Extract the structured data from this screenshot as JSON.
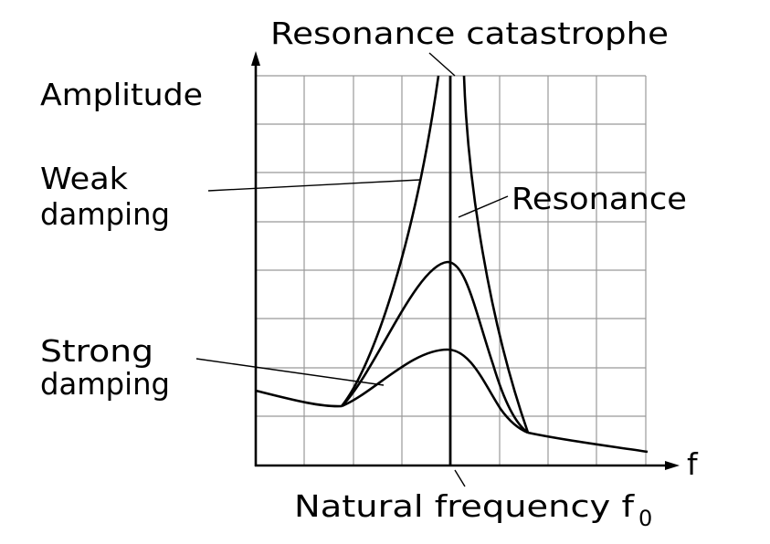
{
  "title": "Resonance catastrophe",
  "y_axis_label": "Amplitude",
  "x_axis_label": "f",
  "natural_frequency_label": "Natural frequency f",
  "natural_frequency_subscript": "0",
  "labels": {
    "weak_damping_line1": "Weak",
    "weak_damping_line2": "damping",
    "strong_damping_line1": "Strong",
    "strong_damping_line2": "damping",
    "resonance": "Resonance"
  },
  "colors": {
    "line": "#000000",
    "grid": "#999999",
    "background": "#ffffff"
  }
}
